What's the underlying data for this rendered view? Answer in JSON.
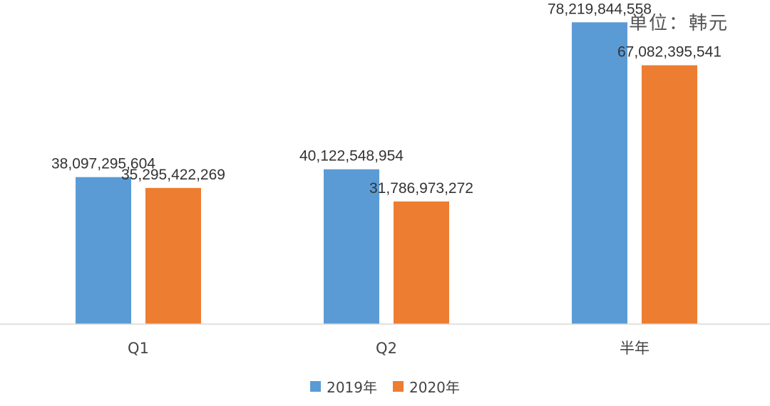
{
  "chart_data": {
    "type": "bar",
    "unit_label": "单位：韩元",
    "categories": [
      "Q1",
      "Q2",
      "半年"
    ],
    "series": [
      {
        "name": "2019年",
        "color": "#5b9bd5",
        "values": [
          38097295604,
          40122548954,
          78219844558
        ],
        "labels": [
          "38,097,295,604",
          "40,122,548,954",
          "78,219,844,558"
        ]
      },
      {
        "name": "2020年",
        "color": "#ed7d31",
        "values": [
          35295422269,
          31786973272,
          67082395541
        ],
        "labels": [
          "35,295,422,269",
          "31,786,973,272",
          "67,082,395,541"
        ]
      }
    ],
    "ylim": [
      0,
      84000000000
    ],
    "grid": false,
    "legend_position": "bottom"
  }
}
